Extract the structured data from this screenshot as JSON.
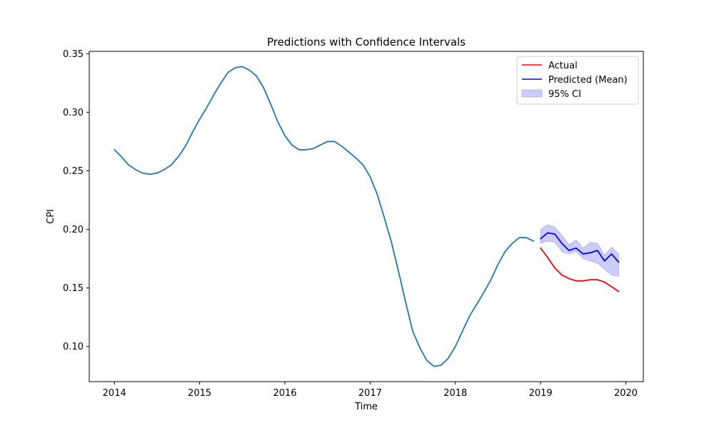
{
  "chart_data": {
    "type": "line",
    "title": "Predictions with Confidence Intervals",
    "xlabel": "Time",
    "ylabel": "CPI",
    "xlim": [
      "2013-09-15",
      "2020-03-15"
    ],
    "ylim": [
      0.07,
      0.352
    ],
    "x_ticks": [
      "2014",
      "2015",
      "2016",
      "2017",
      "2018",
      "2019",
      "2020"
    ],
    "y_ticks": [
      "0.10",
      "0.15",
      "0.20",
      "0.25",
      "0.30",
      "0.35"
    ],
    "grid": false,
    "legend_placement": "top-right",
    "series": [
      {
        "key": "history",
        "color": "#1f77b4",
        "x": [
          "2014-01",
          "2014-02",
          "2014-03",
          "2014-04",
          "2014-05",
          "2014-06",
          "2014-07",
          "2014-08",
          "2014-09",
          "2014-10",
          "2014-11",
          "2014-12",
          "2015-01",
          "2015-02",
          "2015-03",
          "2015-04",
          "2015-05",
          "2015-06",
          "2015-07",
          "2015-08",
          "2015-09",
          "2015-10",
          "2015-11",
          "2015-12",
          "2016-01",
          "2016-02",
          "2016-03",
          "2016-04",
          "2016-05",
          "2016-06",
          "2016-07",
          "2016-08",
          "2016-09",
          "2016-10",
          "2016-11",
          "2016-12",
          "2017-01",
          "2017-02",
          "2017-03",
          "2017-04",
          "2017-05",
          "2017-06",
          "2017-07",
          "2017-08",
          "2017-09",
          "2017-10",
          "2017-11",
          "2017-12",
          "2018-01",
          "2018-02",
          "2018-03",
          "2018-04",
          "2018-05",
          "2018-06",
          "2018-07",
          "2018-08",
          "2018-09",
          "2018-10",
          "2018-11",
          "2018-12"
        ],
        "values": [
          0.268,
          0.262,
          0.255,
          0.251,
          0.248,
          0.247,
          0.248,
          0.251,
          0.255,
          0.262,
          0.271,
          0.283,
          0.294,
          0.304,
          0.315,
          0.325,
          0.334,
          0.338,
          0.339,
          0.336,
          0.331,
          0.321,
          0.307,
          0.292,
          0.28,
          0.272,
          0.268,
          0.268,
          0.269,
          0.272,
          0.275,
          0.275,
          0.271,
          0.266,
          0.261,
          0.255,
          0.245,
          0.23,
          0.21,
          0.189,
          0.164,
          0.138,
          0.113,
          0.099,
          0.088,
          0.083,
          0.084,
          0.09,
          0.1,
          0.113,
          0.126,
          0.136,
          0.146,
          0.157,
          0.17,
          0.181,
          0.188,
          0.193,
          0.193,
          0.19
        ]
      },
      {
        "key": "actual",
        "name": "Actual",
        "color": "#ff0000",
        "x": [
          "2019-01",
          "2019-02",
          "2019-03",
          "2019-04",
          "2019-05",
          "2019-06",
          "2019-07",
          "2019-08",
          "2019-09",
          "2019-10",
          "2019-11",
          "2019-12"
        ],
        "values": [
          0.184,
          0.176,
          0.167,
          0.161,
          0.158,
          0.156,
          0.156,
          0.157,
          0.157,
          0.155,
          0.151,
          0.147
        ]
      },
      {
        "key": "predicted",
        "name": "Predicted (Mean)",
        "color": "#0000ff",
        "x": [
          "2019-01",
          "2019-02",
          "2019-03",
          "2019-04",
          "2019-05",
          "2019-06",
          "2019-07",
          "2019-08",
          "2019-09",
          "2019-10",
          "2019-11",
          "2019-12"
        ],
        "values": [
          0.192,
          0.197,
          0.196,
          0.188,
          0.182,
          0.184,
          0.179,
          0.18,
          0.182,
          0.173,
          0.179,
          0.172
        ]
      }
    ],
    "band": {
      "name": "95% CI",
      "color": "#0000ff",
      "opacity": 0.2,
      "x": [
        "2019-01",
        "2019-02",
        "2019-03",
        "2019-04",
        "2019-05",
        "2019-06",
        "2019-07",
        "2019-08",
        "2019-09",
        "2019-10",
        "2019-11",
        "2019-12"
      ],
      "lower": [
        0.188,
        0.19,
        0.189,
        0.181,
        0.179,
        0.181,
        0.175,
        0.173,
        0.171,
        0.166,
        0.161,
        0.16
      ],
      "upper": [
        0.2,
        0.204,
        0.202,
        0.195,
        0.187,
        0.191,
        0.184,
        0.189,
        0.188,
        0.178,
        0.185,
        0.179
      ]
    },
    "legend": [
      "Actual",
      "Predicted (Mean)",
      "95% CI"
    ]
  }
}
